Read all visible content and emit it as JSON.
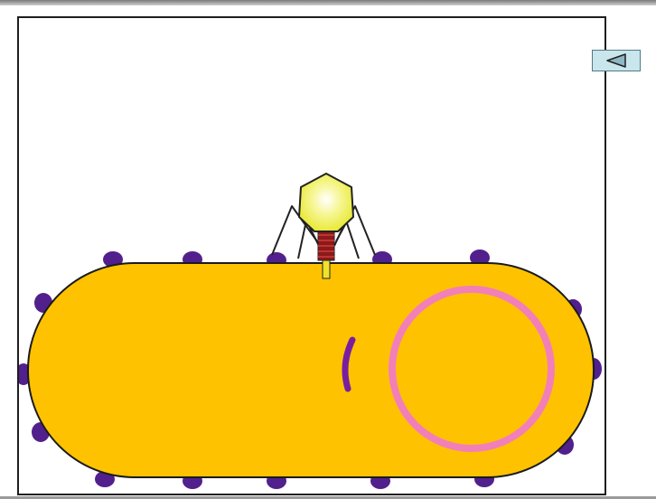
{
  "slide": {
    "frame_color": "#1e1e1e",
    "background_color": "#ffffff"
  },
  "diagram": {
    "bacterium_color": "#ffc200",
    "bacterium_outline": "#1a1a1a",
    "receptor_color": "#52208c",
    "plasmid_color": "#f27fb8",
    "injected_dna_color": "#7a1ea0",
    "phage": {
      "head_color": "#f2f24a",
      "collar_color": "#8b1a1a",
      "tail_tube_color": "#f0e12a",
      "legs_color": "#222222"
    }
  },
  "navigation": {
    "back_button": {
      "icon": "triangle-left-icon",
      "fill": "#c9e6ec",
      "border": "#4e7a87"
    }
  }
}
